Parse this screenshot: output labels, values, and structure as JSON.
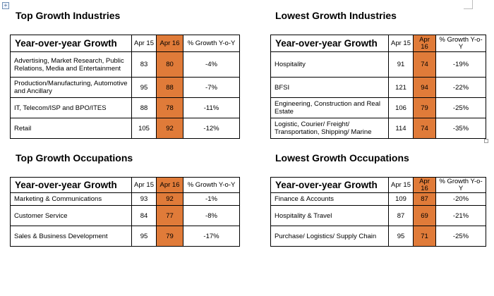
{
  "colors": {
    "highlight": "#e07b39",
    "border": "#000000"
  },
  "header_labels": {
    "title": "Year-over-year Growth",
    "apr15": "Apr 15",
    "apr16": "Apr 16",
    "growth": "% Growth Y-o-Y"
  },
  "sections": {
    "top_industries": {
      "title": "Top Growth Industries",
      "rows": [
        {
          "label": "Advertising, Market Research, Public Relations, Media and Entertainment",
          "apr15": "83",
          "apr16": "80",
          "growth": "-4%"
        },
        {
          "label": "Production/Manufacturing, Automotive and Ancillary",
          "apr15": "95",
          "apr16": "88",
          "growth": "-7%"
        },
        {
          "label": "IT, Telecom/ISP and BPO/ITES",
          "apr15": "88",
          "apr16": "78",
          "growth": "-11%"
        },
        {
          "label": "Retail",
          "apr15": "105",
          "apr16": "92",
          "growth": "-12%"
        }
      ]
    },
    "lowest_industries": {
      "title": "Lowest Growth Industries",
      "rows": [
        {
          "label": "Hospitality",
          "apr15": "91",
          "apr16": "74",
          "growth": "-19%"
        },
        {
          "label": "BFSI",
          "apr15": "121",
          "apr16": "94",
          "growth": "-22%"
        },
        {
          "label": "Engineering, Construction and Real Estate",
          "apr15": "106",
          "apr16": "79",
          "growth": "-25%"
        },
        {
          "label": "Logistic, Courier/ Freight/ Transportation, Shipping/ Marine",
          "apr15": "114",
          "apr16": "74",
          "growth": "-35%"
        }
      ]
    },
    "top_occupations": {
      "title": "Top Growth Occupations",
      "rows": [
        {
          "label": "Marketing & Communications",
          "apr15": "93",
          "apr16": "92",
          "growth": "-1%"
        },
        {
          "label": "Customer Service",
          "apr15": "84",
          "apr16": "77",
          "growth": "-8%"
        },
        {
          "label": "Sales & Business Development",
          "apr15": "95",
          "apr16": "79",
          "growth": "-17%"
        }
      ]
    },
    "lowest_occupations": {
      "title": "Lowest Growth Occupations",
      "rows": [
        {
          "label": "Finance & Accounts",
          "apr15": "109",
          "apr16": "87",
          "growth": "-20%"
        },
        {
          "label": "Hospitality & Travel",
          "apr15": "87",
          "apr16": "69",
          "growth": "-21%"
        },
        {
          "label": "Purchase/ Logistics/ Supply Chain",
          "apr15": "95",
          "apr16": "71",
          "growth": "-25%"
        }
      ]
    }
  }
}
